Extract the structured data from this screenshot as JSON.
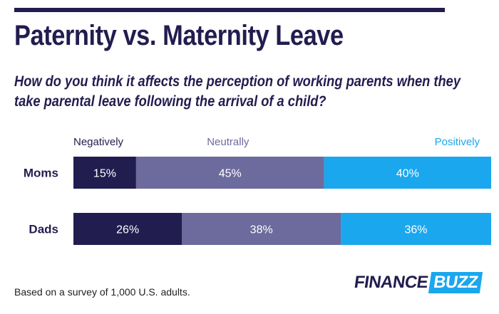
{
  "header": {
    "title": "Paternity vs. Maternity Leave",
    "subtitle": "How do you think it affects the perception of working parents when they take parental leave following the arrival of a child?"
  },
  "footer": {
    "note": "Based on a survey of 1,000 U.S. adults.",
    "logo_left": "FINANCE",
    "logo_right": "BUZZ"
  },
  "colors": {
    "negatively": "#221d4f",
    "neutrally": "#6d6a9d",
    "positively": "#1aa7ee",
    "label_neutral_text": "#6d6a9d",
    "label_positive_text": "#1aa7ee"
  },
  "chart_data": {
    "type": "bar",
    "orientation": "horizontal",
    "stacked": true,
    "normalized_to": 100,
    "categories": [
      "Moms",
      "Dads"
    ],
    "series": [
      {
        "name": "Negatively",
        "values": [
          15,
          26
        ],
        "labels": [
          "15%",
          "26%"
        ]
      },
      {
        "name": "Neutrally",
        "values": [
          45,
          38
        ],
        "labels": [
          "45%",
          "38%"
        ]
      },
      {
        "name": "Positively",
        "values": [
          40,
          36
        ],
        "labels": [
          "40%",
          "36%"
        ]
      }
    ],
    "legend_position": "top"
  }
}
